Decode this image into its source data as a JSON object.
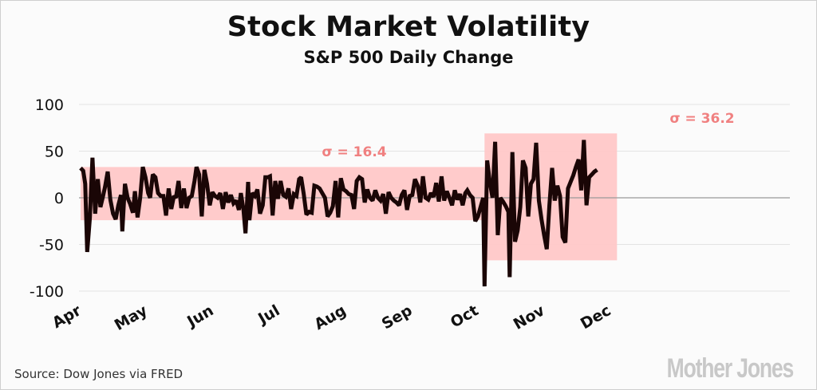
{
  "title": "Stock Market Volatility",
  "subtitle": "S&P 500 Daily Change",
  "source": "Source: Dow Jones via FRED",
  "logo": "Mother Jones",
  "colors": {
    "line": "#1a0606",
    "band": "#ffc8c8",
    "annotation": "#f08080",
    "grid": "#e3e3e3"
  },
  "chart_data": {
    "type": "line",
    "title": "Stock Market Volatility",
    "subtitle": "S&P 500 Daily Change",
    "xlabel": "",
    "ylabel": "",
    "ylim": [
      -100,
      100
    ],
    "yticks": [
      "100",
      "50",
      "0",
      "-50",
      "-100"
    ],
    "ytick_values": [
      100,
      50,
      0,
      -50,
      -100
    ],
    "month_ticks": [
      "Apr",
      "May",
      "Jun",
      "Jul",
      "Aug",
      "Sep",
      "Oct",
      "Nov",
      "Dec"
    ],
    "month_tick_positions": [
      0,
      1,
      2,
      3,
      4,
      5,
      6,
      7,
      8
    ],
    "grid": true,
    "bands": [
      {
        "label": "σ = 16.4",
        "x_start": 0,
        "x_end": 6.1,
        "y_low": -24,
        "y_high": 33
      },
      {
        "label": "σ = 36.2",
        "x_start": 6.1,
        "x_end": 8.1,
        "y_low": -67,
        "y_high": 69
      }
    ],
    "series": [
      {
        "values": [
          [
            0.0,
            32
          ],
          [
            0.04,
            29
          ],
          [
            0.07,
            15
          ],
          [
            0.1,
            -58
          ],
          [
            0.14,
            -22
          ],
          [
            0.18,
            43
          ],
          [
            0.22,
            -17
          ],
          [
            0.26,
            20
          ],
          [
            0.3,
            -10
          ],
          [
            0.34,
            2
          ],
          [
            0.37,
            12
          ],
          [
            0.41,
            28
          ],
          [
            0.45,
            -2
          ],
          [
            0.49,
            -17
          ],
          [
            0.53,
            -23
          ],
          [
            0.57,
            -8
          ],
          [
            0.61,
            3
          ],
          [
            0.63,
            -36
          ],
          [
            0.67,
            15
          ],
          [
            0.71,
            0
          ],
          [
            0.75,
            -7
          ],
          [
            0.79,
            -16
          ],
          [
            0.82,
            7
          ],
          [
            0.86,
            -21
          ],
          [
            0.9,
            0
          ],
          [
            0.94,
            33
          ],
          [
            0.98,
            22
          ],
          [
            1.02,
            5
          ],
          [
            1.05,
            0
          ],
          [
            1.09,
            25
          ],
          [
            1.13,
            22
          ],
          [
            1.17,
            5
          ],
          [
            1.21,
            2
          ],
          [
            1.25,
            2
          ],
          [
            1.29,
            -19
          ],
          [
            1.33,
            10
          ],
          [
            1.37,
            -12
          ],
          [
            1.41,
            2
          ],
          [
            1.44,
            0
          ],
          [
            1.48,
            18
          ],
          [
            1.52,
            -11
          ],
          [
            1.56,
            10
          ],
          [
            1.6,
            -11
          ],
          [
            1.64,
            0
          ],
          [
            1.68,
            2
          ],
          [
            1.72,
            18
          ],
          [
            1.75,
            33
          ],
          [
            1.79,
            25
          ],
          [
            1.83,
            -20
          ],
          [
            1.87,
            30
          ],
          [
            1.91,
            15
          ],
          [
            1.95,
            -8
          ],
          [
            1.99,
            6
          ],
          [
            2.03,
            2
          ],
          [
            2.07,
            0
          ],
          [
            2.11,
            5
          ],
          [
            2.15,
            -12
          ],
          [
            2.19,
            6
          ],
          [
            2.23,
            -5
          ],
          [
            2.27,
            3
          ],
          [
            2.31,
            -6
          ],
          [
            2.35,
            -3
          ],
          [
            2.39,
            -13
          ],
          [
            2.42,
            5
          ],
          [
            2.46,
            -13
          ],
          [
            2.49,
            -38
          ],
          [
            2.53,
            17
          ],
          [
            2.55,
            -24
          ],
          [
            2.59,
            5
          ],
          [
            2.63,
            2
          ],
          [
            2.67,
            9
          ],
          [
            2.71,
            -17
          ],
          [
            2.75,
            -8
          ],
          [
            2.79,
            22
          ],
          [
            2.83,
            22
          ],
          [
            2.86,
            23
          ],
          [
            2.9,
            -19
          ],
          [
            2.94,
            18
          ],
          [
            2.98,
            -1
          ],
          [
            3.02,
            18
          ],
          [
            3.06,
            3
          ],
          [
            3.1,
            1
          ],
          [
            3.14,
            10
          ],
          [
            3.18,
            -12
          ],
          [
            3.22,
            4
          ],
          [
            3.26,
            2
          ],
          [
            3.3,
            20
          ],
          [
            3.33,
            22
          ],
          [
            3.37,
            4
          ],
          [
            3.41,
            -18
          ],
          [
            3.45,
            -15
          ],
          [
            3.49,
            -16
          ],
          [
            3.53,
            13
          ],
          [
            3.57,
            12
          ],
          [
            3.61,
            10
          ],
          [
            3.65,
            5
          ],
          [
            3.69,
            0
          ],
          [
            3.73,
            -20
          ],
          [
            3.77,
            -16
          ],
          [
            3.81,
            -9
          ],
          [
            3.85,
            18
          ],
          [
            3.89,
            -21
          ],
          [
            3.93,
            21
          ],
          [
            3.97,
            9
          ],
          [
            4.01,
            7
          ],
          [
            4.05,
            4
          ],
          [
            4.09,
            3
          ],
          [
            4.13,
            -12
          ],
          [
            4.17,
            18
          ],
          [
            4.21,
            22
          ],
          [
            4.25,
            20
          ],
          [
            4.29,
            -5
          ],
          [
            4.33,
            9
          ],
          [
            4.37,
            0
          ],
          [
            4.41,
            -3
          ],
          [
            4.45,
            8
          ],
          [
            4.49,
            0
          ],
          [
            4.53,
            -3
          ],
          [
            4.57,
            4
          ],
          [
            4.61,
            -17
          ],
          [
            4.65,
            6
          ],
          [
            4.69,
            0
          ],
          [
            4.73,
            -3
          ],
          [
            4.77,
            -5
          ],
          [
            4.81,
            -8
          ],
          [
            4.85,
            3
          ],
          [
            4.89,
            8
          ],
          [
            4.93,
            -13
          ],
          [
            4.97,
            2
          ],
          [
            5.01,
            3
          ],
          [
            5.05,
            20
          ],
          [
            5.09,
            13
          ],
          [
            5.13,
            -5
          ],
          [
            5.17,
            23
          ],
          [
            5.21,
            0
          ],
          [
            5.25,
            -2
          ],
          [
            5.29,
            5
          ],
          [
            5.33,
            1
          ],
          [
            5.37,
            16
          ],
          [
            5.41,
            -4
          ],
          [
            5.45,
            23
          ],
          [
            5.49,
            -3
          ],
          [
            5.53,
            7
          ],
          [
            5.57,
            0
          ],
          [
            5.61,
            -8
          ],
          [
            5.65,
            8
          ],
          [
            5.69,
            -2
          ],
          [
            5.73,
            4
          ],
          [
            5.77,
            -8
          ],
          [
            5.81,
            5
          ],
          [
            5.84,
            8
          ],
          [
            5.88,
            3
          ],
          [
            5.92,
            0
          ],
          [
            5.96,
            -25
          ],
          [
            6.0,
            -20
          ],
          [
            6.04,
            -10
          ],
          [
            6.08,
            0
          ],
          [
            6.1,
            -95
          ],
          [
            6.14,
            40
          ],
          [
            6.18,
            17
          ],
          [
            6.22,
            0
          ],
          [
            6.26,
            60
          ],
          [
            6.3,
            -40
          ],
          [
            6.34,
            0
          ],
          [
            6.38,
            -4
          ],
          [
            6.42,
            -9
          ],
          [
            6.46,
            -15
          ],
          [
            6.48,
            -85
          ],
          [
            6.52,
            49
          ],
          [
            6.56,
            -47
          ],
          [
            6.6,
            -35
          ],
          [
            6.64,
            -10
          ],
          [
            6.68,
            40
          ],
          [
            6.72,
            32
          ],
          [
            6.76,
            -20
          ],
          [
            6.8,
            15
          ],
          [
            6.84,
            20
          ],
          [
            6.88,
            59
          ],
          [
            6.92,
            -3
          ],
          [
            6.96,
            -23
          ],
          [
            7.0,
            -40
          ],
          [
            7.04,
            -55
          ],
          [
            7.08,
            -8
          ],
          [
            7.12,
            32
          ],
          [
            7.16,
            -3
          ],
          [
            7.2,
            13
          ],
          [
            7.24,
            2
          ],
          [
            7.28,
            -42
          ],
          [
            7.32,
            -48
          ],
          [
            7.36,
            10
          ],
          [
            7.4,
            17
          ],
          [
            7.44,
            24
          ],
          [
            7.48,
            33
          ],
          [
            7.52,
            41
          ],
          [
            7.56,
            8
          ],
          [
            7.6,
            62
          ],
          [
            7.64,
            -8
          ],
          [
            7.68,
            22
          ],
          [
            7.72,
            25
          ],
          [
            7.76,
            28
          ],
          [
            7.8,
            30
          ]
        ]
      }
    ]
  }
}
